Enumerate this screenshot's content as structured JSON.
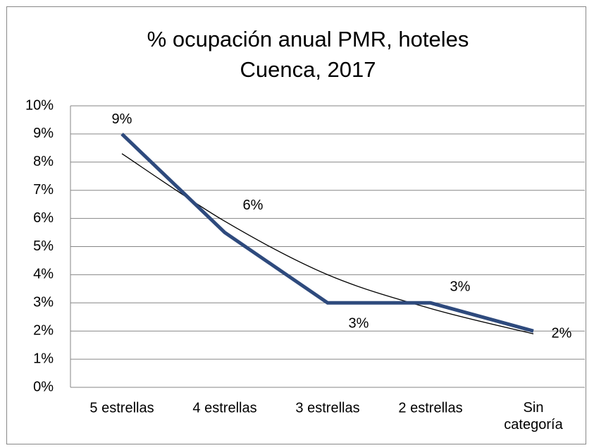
{
  "chart_data": {
    "type": "line",
    "title": [
      "% ocupación anual PMR, hoteles",
      "Cuenca, 2017"
    ],
    "categories": [
      "5 estrellas",
      "4 estrellas",
      "3 estrellas",
      "2 estrellas",
      "Sin categoría"
    ],
    "series": [
      {
        "color": "#2e4a7d",
        "values": [
          9,
          5.5,
          3,
          3,
          2
        ],
        "value_labels": [
          "9%",
          "6%",
          "3%",
          "3%",
          "2%"
        ]
      }
    ],
    "trendline": {
      "color": "#000000",
      "values": [
        8.3,
        5.9,
        4.0,
        2.8,
        1.9
      ]
    },
    "ylim": [
      0,
      10
    ],
    "yticks": [
      {
        "value": 0,
        "label": "0%"
      },
      {
        "value": 1,
        "label": "1%"
      },
      {
        "value": 2,
        "label": "2%"
      },
      {
        "value": 3,
        "label": "3%"
      },
      {
        "value": 4,
        "label": "4%"
      },
      {
        "value": 5,
        "label": "5%"
      },
      {
        "value": 6,
        "label": "6%"
      },
      {
        "value": 7,
        "label": "7%"
      },
      {
        "value": 8,
        "label": "8%"
      },
      {
        "value": 9,
        "label": "9%"
      },
      {
        "value": 10,
        "label": "10%"
      }
    ],
    "grid": true
  }
}
